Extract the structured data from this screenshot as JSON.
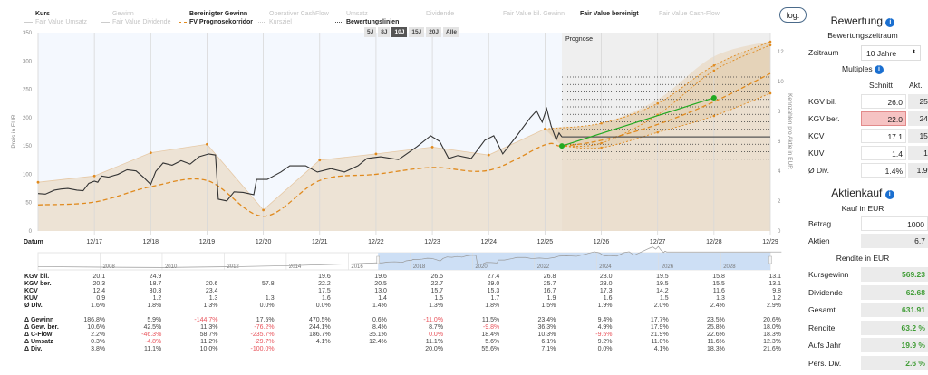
{
  "legend": {
    "row1": [
      {
        "label": "Kurs",
        "active": true,
        "color": "#222222",
        "style": "solid"
      },
      {
        "label": "Gewinn",
        "active": false,
        "color": "#cccccc",
        "style": "solid"
      },
      {
        "label": "Bereinigter Gewinn",
        "active": true,
        "color": "#e08a1e",
        "style": "dash"
      },
      {
        "label": "Operativer CashFlow",
        "active": false,
        "color": "#cccccc",
        "style": "solid"
      },
      {
        "label": "Umsatz",
        "active": false,
        "color": "#cccccc",
        "style": "solid"
      },
      {
        "label": "Dividende",
        "active": false,
        "color": "#cccccc",
        "style": "solid"
      },
      {
        "label": "Fair Value bil. Gewinn",
        "active": false,
        "color": "#cccccc",
        "style": "solid"
      },
      {
        "label": "Fair Value bereinigt",
        "active": true,
        "color": "#e08a1e",
        "style": "dash"
      },
      {
        "label": "Fair Value Cash-Flow",
        "active": false,
        "color": "#cccccc",
        "style": "solid"
      }
    ],
    "row2": [
      {
        "label": "Fair Value Umsatz",
        "active": false,
        "color": "#cccccc",
        "style": "solid"
      },
      {
        "label": "Fair Value Dividende",
        "active": false,
        "color": "#cccccc",
        "style": "solid"
      },
      {
        "label": "FV Prognosekorridor",
        "active": true,
        "color": "#e08a1e",
        "style": "dash"
      },
      {
        "label": "Kursziel",
        "active": false,
        "color": "#cccccc",
        "style": "dot"
      },
      {
        "label": "Bewertungslinien",
        "active": true,
        "color": "#555555",
        "style": "dot"
      }
    ]
  },
  "range_buttons": [
    {
      "label": "5J"
    },
    {
      "label": "8J"
    },
    {
      "label": "10J",
      "active": true
    },
    {
      "label": "15J"
    },
    {
      "label": "20J"
    },
    {
      "label": "Alle"
    }
  ],
  "log_button": "log.",
  "chart_data": {
    "type": "line",
    "xlabel": "Datum",
    "ylabel": "Preis in EUR",
    "ylabel_right": "Kennzahlen pro Aktie in EUR",
    "prognose_label": "Prognose",
    "ylim": [
      0,
      350
    ],
    "yticks": [
      0,
      50,
      100,
      150,
      200,
      250,
      300,
      350
    ],
    "ylim_right": [
      0,
      13.27
    ],
    "yticks_right": [
      0,
      2,
      4,
      6,
      8,
      10,
      12
    ],
    "xlim": [
      2016.96,
      2029.96
    ],
    "xticks": [
      {
        "x": 2017.96,
        "label": "12/17"
      },
      {
        "x": 2018.96,
        "label": "12/18"
      },
      {
        "x": 2019.96,
        "label": "12/19"
      },
      {
        "x": 2020.96,
        "label": "12/20"
      },
      {
        "x": 2021.96,
        "label": "12/21"
      },
      {
        "x": 2022.96,
        "label": "12/22"
      },
      {
        "x": 2023.96,
        "label": "12/23"
      },
      {
        "x": 2024.96,
        "label": "12/24"
      },
      {
        "x": 2025.96,
        "label": "12/25"
      },
      {
        "x": 2026.96,
        "label": "12/26"
      },
      {
        "x": 2027.96,
        "label": "12/27"
      },
      {
        "x": 2028.96,
        "label": "12/28"
      },
      {
        "x": 2029.96,
        "label": "12/29"
      }
    ],
    "prognose_start": 2026.26,
    "series": [
      {
        "name": "Kurs",
        "color": "#333333",
        "points": [
          [
            2016.96,
            66
          ],
          [
            2017.09,
            65
          ],
          [
            2017.25,
            72
          ],
          [
            2017.37,
            74
          ],
          [
            2017.49,
            75
          ],
          [
            2017.65,
            72
          ],
          [
            2017.76,
            71
          ],
          [
            2017.86,
            84
          ],
          [
            2017.96,
            88
          ],
          [
            2018.02,
            86
          ],
          [
            2018.09,
            97
          ],
          [
            2018.21,
            95
          ],
          [
            2018.38,
            100
          ],
          [
            2018.54,
            108
          ],
          [
            2018.7,
            106
          ],
          [
            2018.83,
            95
          ],
          [
            2018.96,
            82
          ],
          [
            2019.05,
            105
          ],
          [
            2019.18,
            120
          ],
          [
            2019.34,
            116
          ],
          [
            2019.5,
            124
          ],
          [
            2019.66,
            118
          ],
          [
            2019.82,
            131
          ],
          [
            2019.99,
            136
          ],
          [
            2020.11,
            134
          ],
          [
            2020.16,
            56
          ],
          [
            2020.31,
            53
          ],
          [
            2020.44,
            69
          ],
          [
            2020.6,
            68
          ],
          [
            2020.79,
            64
          ],
          [
            2020.84,
            91
          ],
          [
            2021.03,
            91
          ],
          [
            2021.27,
            104
          ],
          [
            2021.43,
            115
          ],
          [
            2021.71,
            115
          ],
          [
            2021.92,
            104
          ],
          [
            2022.16,
            110
          ],
          [
            2022.4,
            104
          ],
          [
            2022.64,
            115
          ],
          [
            2022.8,
            128
          ],
          [
            2023.04,
            131
          ],
          [
            2023.36,
            126
          ],
          [
            2023.69,
            149
          ],
          [
            2023.93,
            168
          ],
          [
            2024.09,
            158
          ],
          [
            2024.25,
            128
          ],
          [
            2024.41,
            133
          ],
          [
            2024.65,
            128
          ],
          [
            2024.89,
            160
          ],
          [
            2025.05,
            168
          ],
          [
            2025.21,
            136
          ],
          [
            2025.46,
            168
          ],
          [
            2025.7,
            200
          ],
          [
            2025.81,
            212
          ],
          [
            2025.91,
            192
          ],
          [
            2025.99,
            216
          ],
          [
            2026.07,
            185
          ],
          [
            2026.16,
            161
          ],
          [
            2026.21,
            173
          ],
          [
            2026.26,
            166
          ]
        ]
      },
      {
        "name": "Kurs (aktuell)",
        "color": "#555555",
        "points": [
          [
            2026.26,
            166
          ],
          [
            2029.96,
            166
          ]
        ]
      },
      {
        "name": "Fair Value bereinigt",
        "color": "#e08a1e",
        "points": [
          [
            2016.96,
            86
          ],
          [
            2017.96,
            97
          ],
          [
            2018.96,
            138
          ],
          [
            2019.96,
            153
          ],
          [
            2020.96,
            37
          ],
          [
            2021.96,
            125
          ],
          [
            2022.96,
            136
          ],
          [
            2023.96,
            148
          ],
          [
            2024.96,
            134
          ],
          [
            2025.96,
            180
          ]
        ]
      },
      {
        "name": "Bereinigter Gewinn",
        "color": "#e08a1e",
        "points": [
          [
            2016.96,
            46
          ],
          [
            2017.96,
            51
          ],
          [
            2018.96,
            78
          ],
          [
            2019.96,
            89
          ],
          [
            2020.96,
            26
          ],
          [
            2021.96,
            89
          ],
          [
            2022.96,
            100
          ],
          [
            2023.96,
            112
          ],
          [
            2024.96,
            107
          ],
          [
            2025.96,
            152
          ],
          [
            2026.26,
            150
          ],
          [
            2026.96,
            160
          ],
          [
            2027.96,
            188
          ],
          [
            2028.96,
            228
          ],
          [
            2029.96,
            278
          ]
        ]
      },
      {
        "name": "FV Prognosekorridor oben",
        "color": "#e08a1e",
        "points": [
          [
            2025.96,
            180
          ],
          [
            2026.96,
            190
          ],
          [
            2027.96,
            225
          ],
          [
            2028.96,
            292
          ],
          [
            2029.96,
            334
          ]
        ]
      },
      {
        "name": "FV Prognosekorridor mitte",
        "color": "#e08a1e",
        "points": [
          [
            2026.26,
            150
          ],
          [
            2026.96,
            155
          ],
          [
            2027.96,
            205
          ],
          [
            2028.96,
            283
          ],
          [
            2029.96,
            328
          ]
        ]
      },
      {
        "name": "FV Prognosekorridor unten",
        "color": "#e08a1e",
        "points": [
          [
            2026.26,
            150
          ],
          [
            2026.96,
            147
          ],
          [
            2027.96,
            174
          ],
          [
            2028.96,
            203
          ],
          [
            2029.96,
            243
          ]
        ]
      },
      {
        "name": "Bewertungslinie",
        "color": "#22aa22",
        "points": [
          [
            2026.26,
            150
          ],
          [
            2028.96,
            235
          ]
        ]
      }
    ],
    "prognose_band_upper": [
      [
        2026.26,
        184
      ],
      [
        2026.96,
        190
      ],
      [
        2027.96,
        232
      ],
      [
        2028.96,
        308
      ],
      [
        2029.96,
        335
      ]
    ],
    "valuation_levels_right": [
      4.8,
      5.3,
      5.8,
      6.3,
      6.8,
      7.3,
      7.8,
      8.3,
      8.8,
      9.3,
      9.8,
      10.3
    ],
    "navigator": {
      "xlim": [
        2006,
        2029.6
      ],
      "labels": [
        "2008",
        "2010",
        "2012",
        "2014",
        "2016",
        "2018",
        "2020",
        "2022",
        "2024",
        "2026",
        "2028"
      ],
      "selection": [
        2016.96,
        2029.6
      ],
      "history": [
        [
          2006,
          30
        ],
        [
          2008,
          25
        ],
        [
          2010,
          22
        ],
        [
          2012,
          28
        ],
        [
          2014,
          38
        ],
        [
          2016,
          55
        ]
      ]
    }
  },
  "table": {
    "multiples": [
      {
        "label": "KGV bil.",
        "values": [
          "20.1",
          "24.9",
          "",
          "",
          "19.6",
          "19.6",
          "26.5",
          "27.4",
          "26.8",
          "23.0",
          "19.5",
          "15.8",
          "13.1"
        ]
      },
      {
        "label": "KGV ber.",
        "values": [
          "20.3",
          "18.7",
          "20.6",
          "57.8",
          "22.2",
          "20.5",
          "22.7",
          "29.0",
          "25.7",
          "23.0",
          "19.5",
          "15.5",
          "13.1"
        ]
      },
      {
        "label": "KCV",
        "values": [
          "12.4",
          "30.3",
          "23.4",
          "",
          "17.5",
          "13.0",
          "15.7",
          "15.3",
          "16.7",
          "17.3",
          "14.2",
          "11.6",
          "9.8"
        ]
      },
      {
        "label": "KUV",
        "values": [
          "0.9",
          "1.2",
          "1.3",
          "1.3",
          "1.6",
          "1.4",
          "1.5",
          "1.7",
          "1.9",
          "1.6",
          "1.5",
          "1.3",
          "1.2"
        ]
      },
      {
        "label": "Ø Div.",
        "values": [
          "1.6%",
          "1.8%",
          "1.3%",
          "0.0%",
          "0.0%",
          "1.4%",
          "1.3%",
          "1.8%",
          "1.5%",
          "1.9%",
          "2.0%",
          "2.4%",
          "2.9%"
        ]
      }
    ],
    "changes": [
      {
        "label": "Δ Gewinn",
        "values": [
          "186.8%",
          "5.9%",
          "-144.7%",
          "17.5%",
          "470.5%",
          "0.6%",
          "-11.0%",
          "11.5%",
          "23.4%",
          "9.4%",
          "17.7%",
          "23.5%",
          "20.6%"
        ]
      },
      {
        "label": "Δ Gew. ber.",
        "values": [
          "10.6%",
          "42.5%",
          "11.3%",
          "-76.2%",
          "244.1%",
          "8.4%",
          "8.7%",
          "-9.8%",
          "36.3%",
          "4.9%",
          "17.9%",
          "25.8%",
          "18.0%"
        ]
      },
      {
        "label": "Δ C-Flow",
        "values": [
          "2.2%",
          "-46.3%",
          "58.7%",
          "-235.7%",
          "186.7%",
          "35.1%",
          "0.0%",
          "18.4%",
          "10.3%",
          "-9.5%",
          "21.9%",
          "22.6%",
          "18.3%"
        ]
      },
      {
        "label": "Δ Umsatz",
        "values": [
          "0.3%",
          "-4.8%",
          "11.2%",
          "-29.7%",
          "4.1%",
          "12.4%",
          "11.1%",
          "5.6%",
          "6.1%",
          "9.2%",
          "11.0%",
          "11.6%",
          "12.3%"
        ]
      },
      {
        "label": "Δ Div.",
        "values": [
          "3.8%",
          "11.1%",
          "10.0%",
          "-100.0%",
          "",
          "",
          "20.0%",
          "55.6%",
          "7.1%",
          "0.0%",
          "4.1%",
          "18.3%",
          "21.6%"
        ]
      }
    ],
    "red_cells": [
      [
        5,
        2
      ],
      [
        5,
        6
      ],
      [
        6,
        3
      ],
      [
        6,
        7
      ],
      [
        7,
        1
      ],
      [
        7,
        3
      ],
      [
        7,
        6
      ],
      [
        7,
        9
      ],
      [
        8,
        1
      ],
      [
        8,
        3
      ],
      [
        9,
        3
      ]
    ]
  },
  "sidebar": {
    "title": "Bewertung",
    "info": "i",
    "period_label": "Bewertungszeitraum",
    "zeitraum_label": "Zeitraum",
    "zeitraum_value": "10 Jahre",
    "multiples_label": "Multiples",
    "col_avg": "Schnitt",
    "col_cur": "Akt.",
    "rows": [
      {
        "label": "KGV bil.",
        "avg": "26.0",
        "cur": "25.1"
      },
      {
        "label": "KGV ber.",
        "avg": "22.0",
        "cur": "24.1"
      },
      {
        "label": "KCV",
        "avg": "17.1",
        "cur": "15.7"
      },
      {
        "label": "KUV",
        "avg": "1.4",
        "cur": "1.8"
      },
      {
        "label": "Ø Div.",
        "avg": "1.4%",
        "cur": "1.9%"
      }
    ],
    "buy_title": "Aktienkauf",
    "buy_sub": "Kauf in EUR",
    "betrag_label": "Betrag",
    "betrag_value": "1000",
    "aktien_label": "Aktien",
    "aktien_value": "6.7",
    "return_sub": "Rendite in EUR",
    "returns": [
      {
        "label": "Kursgewinn",
        "value": "569.23"
      },
      {
        "label": "Dividende",
        "value": "62.68"
      },
      {
        "label": "Gesamt",
        "value": "631.91"
      },
      {
        "label": "Rendite",
        "value": "63.2 %"
      },
      {
        "label": "Aufs Jahr",
        "value": "19.9 %"
      },
      {
        "label": "Pers. Div.",
        "value": "2.6 %"
      }
    ]
  }
}
